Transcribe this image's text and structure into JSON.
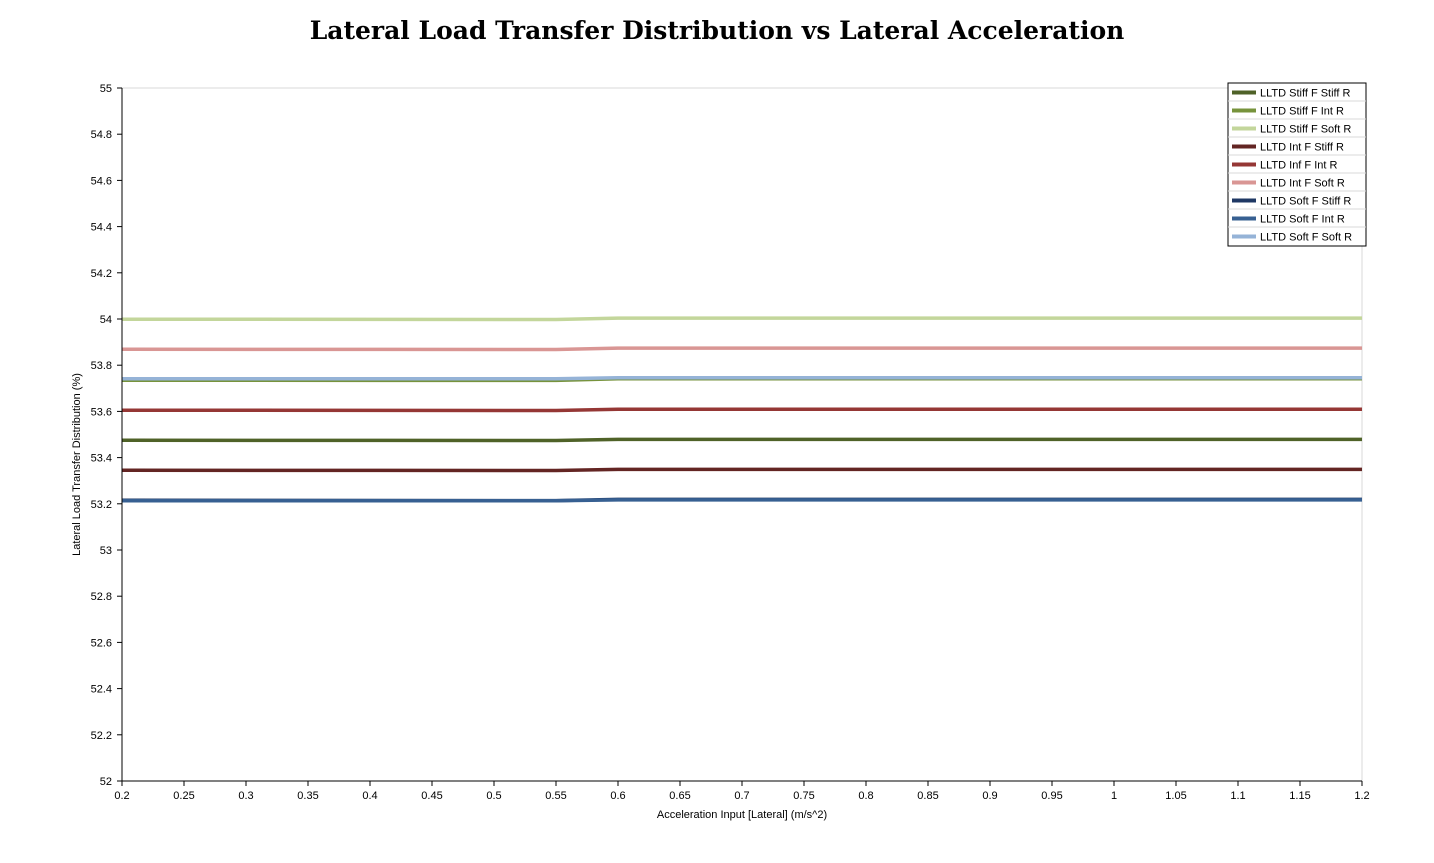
{
  "chart_data": {
    "type": "line",
    "title": "Lateral Load Transfer Distribution vs Lateral Acceleration",
    "xlabel": "Acceleration Input [Lateral] (m/s^2)",
    "ylabel": "Lateral Load Transfer Distribution (%)",
    "xlim": [
      0.2,
      1.2
    ],
    "ylim": [
      52,
      55
    ],
    "x_ticks": [
      "0.2",
      "0.25",
      "0.3",
      "0.35",
      "0.4",
      "0.45",
      "0.5",
      "0.55",
      "0.6",
      "0.65",
      "0.7",
      "0.75",
      "0.8",
      "0.85",
      "0.9",
      "0.95",
      "1",
      "1.05",
      "1.1",
      "1.15",
      "1.2"
    ],
    "y_ticks": [
      "52",
      "52.2",
      "52.4",
      "52.6",
      "52.8",
      "53",
      "53.2",
      "53.4",
      "53.6",
      "53.8",
      "54",
      "54.2",
      "54.4",
      "54.6",
      "54.8",
      "55"
    ],
    "x": [
      0.2,
      0.55,
      0.6,
      1.2
    ],
    "grid": "horizontal line at top only",
    "legend_position": "top-right",
    "series": [
      {
        "name": "LLTD Stiff F Stiff R",
        "color": "#4f6228",
        "values": [
          53.475,
          53.474,
          53.479,
          53.479
        ]
      },
      {
        "name": "LLTD Stiff F Int R",
        "color": "#77933c",
        "values": [
          53.735,
          53.734,
          53.741,
          53.741
        ]
      },
      {
        "name": "LLTD Stiff F Soft R",
        "color": "#c3d69b",
        "values": [
          53.999,
          53.998,
          54.004,
          54.004
        ]
      },
      {
        "name": "LLTD Int F Stiff R",
        "color": "#632523",
        "values": [
          53.345,
          53.344,
          53.349,
          53.349
        ]
      },
      {
        "name": "LLTD Inf F Int R",
        "color": "#953735",
        "values": [
          53.605,
          53.604,
          53.609,
          53.609
        ]
      },
      {
        "name": "LLTD Int F Soft R",
        "color": "#d99694",
        "values": [
          53.869,
          53.868,
          53.874,
          53.874
        ]
      },
      {
        "name": "LLTD Soft F Stiff R",
        "color": "#1f3864",
        "values": [
          53.215,
          53.214,
          53.219,
          53.219
        ]
      },
      {
        "name": "LLTD Soft F Int R",
        "color": "#376092",
        "values": [
          53.213,
          53.213,
          53.217,
          53.217
        ]
      },
      {
        "name": "LLTD Soft F Soft R",
        "color": "#95b3d7",
        "values": [
          53.741,
          53.741,
          53.746,
          53.746
        ]
      }
    ]
  }
}
